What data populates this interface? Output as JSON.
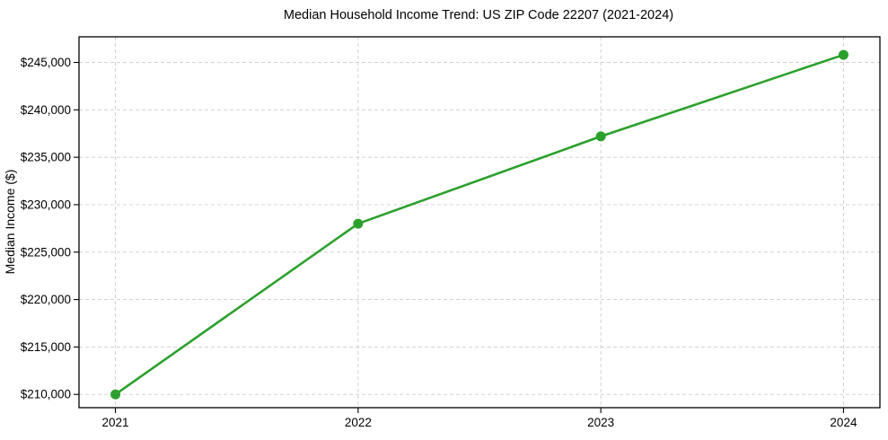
{
  "chart_data": {
    "type": "line",
    "title": "Median Household Income Trend: US ZIP Code 22207 (2021-2024)",
    "ylabel": "Median Income ($)",
    "x": [
      2021,
      2022,
      2023,
      2024
    ],
    "series": [
      {
        "name": "Median Household Income",
        "values": [
          210000,
          228000,
          237200,
          245800
        ]
      }
    ],
    "xtick_labels": [
      "2021",
      "2022",
      "2023",
      "2024"
    ],
    "ytick_values": [
      210000,
      215000,
      220000,
      225000,
      230000,
      235000,
      240000,
      245000
    ],
    "ytick_labels": [
      "$210,000",
      "$215,000",
      "$220,000",
      "$225,000",
      "$230,000",
      "$235,000",
      "$240,000",
      "$245,000"
    ],
    "xlim": [
      2020.85,
      2024.15
    ],
    "ylim": [
      208600,
      247700
    ],
    "grid": true,
    "grid_style": "dashed",
    "legend": "none",
    "line_color": "#2ca02c",
    "marker": "circle",
    "grid_color": "#cccccc",
    "axis_color": "#000000",
    "text_color": "#000000",
    "background": "#ffffff"
  }
}
